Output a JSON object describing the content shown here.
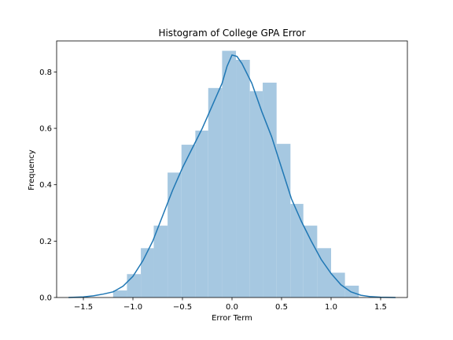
{
  "chart_data": {
    "type": "bar",
    "title": "Histogram of College GPA Error",
    "xlabel": "Error Term",
    "ylabel": "Frequency",
    "xlim": [
      -1.77,
      1.77
    ],
    "ylim": [
      0,
      0.91
    ],
    "xticks": [
      {
        "value": -1.5,
        "label": "−1.5"
      },
      {
        "value": -1.0,
        "label": "−1.0"
      },
      {
        "value": -0.5,
        "label": "−0.5"
      },
      {
        "value": 0.0,
        "label": "0.0"
      },
      {
        "value": 0.5,
        "label": "0.5"
      },
      {
        "value": 1.0,
        "label": "1.0"
      },
      {
        "value": 1.5,
        "label": "1.5"
      }
    ],
    "yticks": [
      {
        "value": 0.0,
        "label": "0.0"
      },
      {
        "value": 0.2,
        "label": "0.2"
      },
      {
        "value": 0.4,
        "label": "0.4"
      },
      {
        "value": 0.6,
        "label": "0.6"
      },
      {
        "value": 0.8,
        "label": "0.8"
      }
    ],
    "bars": [
      {
        "x0": -1.2,
        "x1": -1.06,
        "value": 0.025
      },
      {
        "x0": -1.06,
        "x1": -0.92,
        "value": 0.083
      },
      {
        "x0": -0.92,
        "x1": -0.79,
        "value": 0.175
      },
      {
        "x0": -0.79,
        "x1": -0.65,
        "value": 0.255
      },
      {
        "x0": -0.65,
        "x1": -0.51,
        "value": 0.443
      },
      {
        "x0": -0.51,
        "x1": -0.37,
        "value": 0.542
      },
      {
        "x0": -0.37,
        "x1": -0.24,
        "value": 0.592
      },
      {
        "x0": -0.24,
        "x1": -0.1,
        "value": 0.743
      },
      {
        "x0": -0.1,
        "x1": 0.04,
        "value": 0.875
      },
      {
        "x0": 0.04,
        "x1": 0.18,
        "value": 0.843
      },
      {
        "x0": 0.18,
        "x1": 0.31,
        "value": 0.732
      },
      {
        "x0": 0.31,
        "x1": 0.45,
        "value": 0.762
      },
      {
        "x0": 0.45,
        "x1": 0.59,
        "value": 0.545
      },
      {
        "x0": 0.59,
        "x1": 0.72,
        "value": 0.332
      },
      {
        "x0": 0.72,
        "x1": 0.86,
        "value": 0.255
      },
      {
        "x0": 0.86,
        "x1": 1.0,
        "value": 0.175
      },
      {
        "x0": 1.0,
        "x1": 1.14,
        "value": 0.088
      },
      {
        "x0": 1.14,
        "x1": 1.28,
        "value": 0.042
      }
    ],
    "kde": [
      [
        -1.65,
        0.0
      ],
      [
        -1.5,
        0.002
      ],
      [
        -1.4,
        0.006
      ],
      [
        -1.3,
        0.012
      ],
      [
        -1.2,
        0.02
      ],
      [
        -1.1,
        0.04
      ],
      [
        -1.0,
        0.075
      ],
      [
        -0.9,
        0.13
      ],
      [
        -0.8,
        0.2
      ],
      [
        -0.7,
        0.29
      ],
      [
        -0.6,
        0.38
      ],
      [
        -0.5,
        0.46
      ],
      [
        -0.4,
        0.53
      ],
      [
        -0.3,
        0.6
      ],
      [
        -0.2,
        0.68
      ],
      [
        -0.1,
        0.76
      ],
      [
        -0.05,
        0.82
      ],
      [
        0.0,
        0.86
      ],
      [
        0.05,
        0.855
      ],
      [
        0.1,
        0.83
      ],
      [
        0.2,
        0.76
      ],
      [
        0.3,
        0.66
      ],
      [
        0.4,
        0.57
      ],
      [
        0.5,
        0.46
      ],
      [
        0.6,
        0.35
      ],
      [
        0.7,
        0.27
      ],
      [
        0.8,
        0.2
      ],
      [
        0.9,
        0.135
      ],
      [
        1.0,
        0.085
      ],
      [
        1.1,
        0.045
      ],
      [
        1.2,
        0.02
      ],
      [
        1.3,
        0.008
      ],
      [
        1.4,
        0.003
      ],
      [
        1.5,
        0.001
      ],
      [
        1.65,
        0.0
      ]
    ],
    "grid": false,
    "colors": {
      "bar_fill": "#a6c8e1",
      "kde_line": "#1f77b4",
      "axis": "#000000",
      "background": "#ffffff"
    }
  }
}
